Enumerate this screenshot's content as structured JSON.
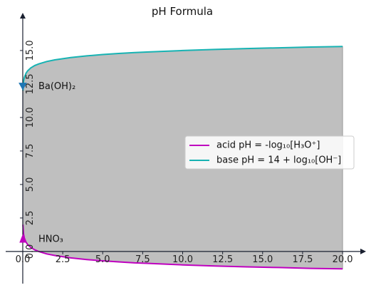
{
  "chart_data": {
    "type": "line",
    "title": "pH Formula",
    "xlabel": "",
    "ylabel": "",
    "xlim": [
      -0.8,
      21.2
    ],
    "ylim": [
      -2.4,
      17.6
    ],
    "x_ticks": [
      "0.0",
      "2.5",
      "5.0",
      "7.5",
      "10.0",
      "12.5",
      "15.0",
      "17.5",
      "20.0"
    ],
    "x_tick_values": [
      0,
      2.5,
      5,
      7.5,
      10,
      12.5,
      15,
      17.5,
      20
    ],
    "y_ticks": [
      "0.0",
      "2.5",
      "5.0",
      "7.5",
      "10.0",
      "12.5",
      "15.0"
    ],
    "y_tick_values": [
      0,
      2.5,
      5,
      7.5,
      10,
      12.5,
      15
    ],
    "grid": false,
    "legend_position": "center-right",
    "series": [
      {
        "name": "acid pH = -log₁₀[H₃O⁺]",
        "color": "#bf00bf",
        "x": [
          0.01,
          0.05,
          0.1,
          0.2,
          0.3,
          0.5,
          0.75,
          1,
          1.5,
          2,
          3,
          4,
          5,
          6,
          7,
          8,
          10,
          12,
          14,
          16,
          18,
          20
        ],
        "y": [
          2.0,
          1.3,
          1.0,
          0.7,
          0.52,
          0.3,
          0.12,
          0.0,
          -0.18,
          -0.3,
          -0.48,
          -0.6,
          -0.7,
          -0.78,
          -0.85,
          -0.9,
          -1.0,
          -1.08,
          -1.15,
          -1.2,
          -1.26,
          -1.3
        ]
      },
      {
        "name": "base pH = 14 + log₁₀[OH⁻]",
        "color": "#17b3b3",
        "x": [
          0.01,
          0.05,
          0.1,
          0.2,
          0.3,
          0.5,
          0.75,
          1,
          1.5,
          2,
          3,
          4,
          5,
          6,
          7,
          8,
          10,
          12,
          14,
          16,
          18,
          20
        ],
        "y": [
          12.0,
          12.7,
          13.0,
          13.3,
          13.48,
          13.7,
          13.88,
          14.0,
          14.18,
          14.3,
          14.48,
          14.6,
          14.7,
          14.78,
          14.85,
          14.9,
          15.0,
          15.08,
          15.15,
          15.2,
          15.26,
          15.3
        ]
      }
    ],
    "fill_between": {
      "color": "#bfbfbf",
      "between": [
        "acid",
        "base"
      ]
    },
    "annotations": [
      {
        "text": "Ba(OH)₂",
        "x": 0.0,
        "y": 12.3,
        "marker": "down-triangle",
        "marker_color": "#1f77b4"
      },
      {
        "text": "HNO₃",
        "x": 0.0,
        "y": 0.9,
        "marker": "up-triangle",
        "marker_color": "#bf00bf"
      }
    ]
  }
}
